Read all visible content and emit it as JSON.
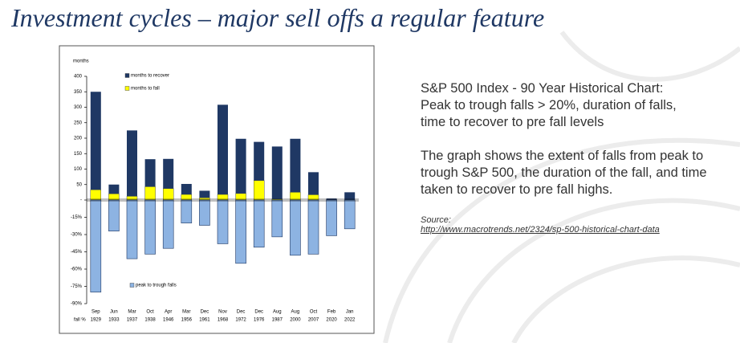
{
  "heading": "Investment cycles – major sell offs a regular feature",
  "chart_data": {
    "type": "bar",
    "y_label": "months",
    "x_label": "fall %",
    "categories": [
      [
        "Sep",
        "1929"
      ],
      [
        "Jun",
        "1933"
      ],
      [
        "Mar",
        "1937"
      ],
      [
        "Oct",
        "1938"
      ],
      [
        "Apr",
        "1946"
      ],
      [
        "Mar",
        "1956"
      ],
      [
        "Dec",
        "1961"
      ],
      [
        "Nov",
        "1968"
      ],
      [
        "Dec",
        "1972"
      ],
      [
        "Dec",
        "1976"
      ],
      [
        "Aug",
        "1987"
      ],
      [
        "Aug",
        "2000"
      ],
      [
        "Oct",
        "2007"
      ],
      [
        "Feb",
        "2020"
      ],
      [
        "Jan",
        "2022"
      ]
    ],
    "series": [
      {
        "name": "months to fall",
        "color": "#ffff00",
        "values": [
          33,
          20,
          12,
          43,
          37,
          18,
          7,
          18,
          21,
          63,
          3,
          25,
          17,
          1,
          0
        ]
      },
      {
        "name": "months to recover",
        "color": "#1f3864",
        "values": [
          317,
          30,
          213,
          89,
          96,
          34,
          23,
          290,
          177,
          125,
          170,
          173,
          73,
          4,
          25
        ]
      },
      {
        "name": "peak to trough falls",
        "color": "#8db3e2",
        "axis": "y2",
        "values": [
          -80,
          -27,
          -51,
          -47,
          -42,
          -20,
          -22,
          -38,
          -55,
          -41,
          -32,
          -48,
          -47,
          -31,
          -25
        ]
      }
    ],
    "ylim": [
      0,
      400
    ],
    "yticks": [
      {
        "value": 0,
        "label": "-"
      },
      50,
      100,
      150,
      200,
      250,
      300,
      350,
      400
    ],
    "y2lim": [
      -90,
      0
    ],
    "y2ticks": [
      {
        "value": -15,
        "label": "-15%"
      },
      {
        "value": -30,
        "label": "-30%"
      },
      {
        "value": -45,
        "label": "-45%"
      },
      {
        "value": -60,
        "label": "-60%"
      },
      {
        "value": -75,
        "label": "-75%"
      },
      {
        "value": -90,
        "label": "-90%"
      }
    ]
  },
  "notes": {
    "title": [
      "S&P 500 Index - 90 Year Historical Chart:",
      "Peak to trough falls > 20%, duration of falls,",
      "time to recover to pre fall levels"
    ],
    "body": "The graph shows the extent of falls from peak to trough S&P 500, the duration of the fall, and time taken to recover to pre fall highs.",
    "source_label": "Source:",
    "source_url": "http://www.macrotrends.net/2324/sp-500-historical-chart-data"
  }
}
